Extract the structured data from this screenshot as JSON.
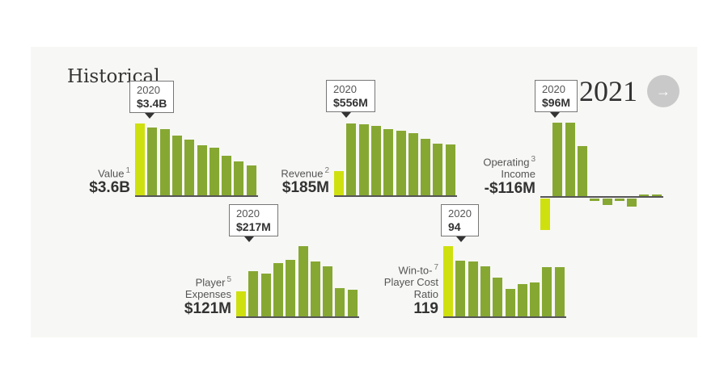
{
  "header": {
    "title": "Historical",
    "year": "2021",
    "next_icon": "arrow-right-icon",
    "next_label": "→"
  },
  "colors": {
    "bar": "#86a832",
    "highlight": "#cfe00f",
    "axis": "#555555"
  },
  "chart_data": [
    {
      "type": "bar",
      "id": "value",
      "label": "Value",
      "note": "1",
      "current": "$3.6B",
      "tooltip": {
        "year": "2020",
        "value": "$3.4B"
      },
      "values": [
        3.6,
        3.4,
        3.3,
        3.0,
        2.8,
        2.5,
        2.4,
        2.0,
        1.7,
        1.5
      ],
      "unit": "$B"
    },
    {
      "type": "bar",
      "id": "revenue",
      "label": "Revenue",
      "note": "2",
      "current": "$185M",
      "tooltip": {
        "year": "2020",
        "value": "$556M"
      },
      "values": [
        185,
        556,
        550,
        540,
        510,
        500,
        480,
        440,
        400,
        395
      ],
      "unit": "$M"
    },
    {
      "type": "bar",
      "id": "operating-income",
      "label": "Operating",
      "label2": "Income",
      "note": "3",
      "current": "-$116M",
      "tooltip": {
        "year": "2020",
        "value": "$96M"
      },
      "values": [
        -116,
        96,
        96,
        65,
        -6,
        -25,
        -4,
        -30,
        2,
        2
      ],
      "unit": "$M"
    },
    {
      "type": "bar",
      "id": "player-expenses",
      "label": "Player",
      "label2": "Expenses",
      "note": "5",
      "current": "$121M",
      "tooltip": {
        "year": "2020",
        "value": "$217M"
      },
      "values": [
        121,
        217,
        207,
        258,
        273,
        340,
        265,
        242,
        137,
        129
      ],
      "unit": "$M"
    },
    {
      "type": "bar",
      "id": "win-to-player-cost-ratio",
      "label": "Win-to-",
      "label2": "Player Cost",
      "label3": "Ratio",
      "note": "7",
      "current": "119",
      "tooltip": {
        "year": "2020",
        "value": "94"
      },
      "values": [
        119,
        94,
        93,
        85,
        66,
        47,
        55,
        57,
        83,
        83
      ],
      "unit": ""
    }
  ]
}
